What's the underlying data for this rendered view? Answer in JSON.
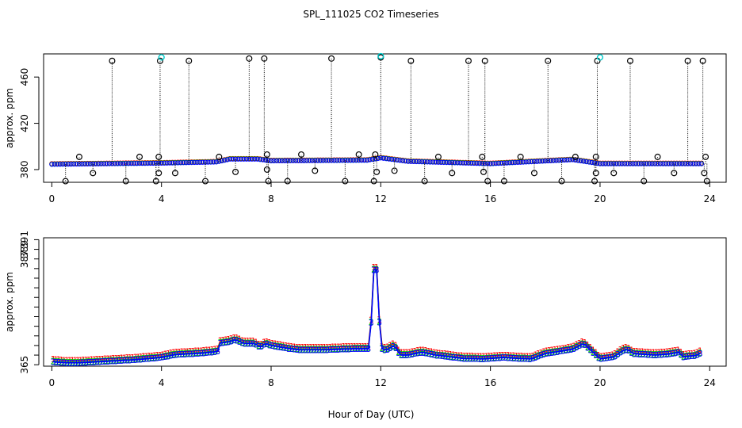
{
  "chart_data": {
    "title": "SPL_111025  CO2 Timeseries",
    "xlabel": "Hour of Day (UTC)",
    "colors": {
      "series1": "#ff0000",
      "series2": "#00cc00",
      "series3": "#0000ff",
      "outlier_low": "#000000",
      "outlier_high": "#00cccc"
    },
    "panels": [
      {
        "type": "scatter",
        "ylabel": "approx. ppm",
        "xlim": [
          -0.3,
          24.6
        ],
        "ylim": [
          369,
          480
        ],
        "xticks": [
          0,
          4,
          8,
          12,
          16,
          20,
          24
        ],
        "yticks": [
          380,
          420,
          460
        ],
        "baseline": 385,
        "baseline_points": {
          "x_start": 0.0,
          "x_end": 23.7,
          "step": 0.1,
          "y": [
            [
              0,
              384.5
            ],
            [
              4,
              385.5
            ],
            [
              6,
              386.5
            ],
            [
              6.5,
              389
            ],
            [
              7.5,
              389
            ],
            [
              8,
              387.5
            ],
            [
              11.5,
              388
            ],
            [
              12,
              390
            ],
            [
              13,
              387
            ],
            [
              16,
              385
            ],
            [
              19,
              388.5
            ],
            [
              20,
              385
            ],
            [
              24,
              385
            ]
          ]
        },
        "black_outliers": [
          [
            0.5,
            370
          ],
          [
            1,
            391
          ],
          [
            1.5,
            377
          ],
          [
            2.2,
            474
          ],
          [
            2.7,
            370
          ],
          [
            3.2,
            391
          ],
          [
            3.8,
            370
          ],
          [
            3.9,
            391
          ],
          [
            3.9,
            377
          ],
          [
            3.95,
            474
          ],
          [
            4.5,
            377
          ],
          [
            5.0,
            474
          ],
          [
            5.6,
            370
          ],
          [
            6.1,
            391
          ],
          [
            6.7,
            378
          ],
          [
            7.2,
            476
          ],
          [
            7.75,
            476
          ],
          [
            7.85,
            380
          ],
          [
            7.85,
            393
          ],
          [
            7.9,
            370
          ],
          [
            8.6,
            370
          ],
          [
            9.1,
            393
          ],
          [
            9.6,
            379
          ],
          [
            10.2,
            476
          ],
          [
            10.7,
            370
          ],
          [
            11.2,
            393
          ],
          [
            11.75,
            370
          ],
          [
            11.8,
            393
          ],
          [
            11.85,
            378
          ],
          [
            12.0,
            477
          ],
          [
            12.5,
            379
          ],
          [
            13.1,
            474
          ],
          [
            13.6,
            370
          ],
          [
            14.1,
            391
          ],
          [
            14.6,
            377
          ],
          [
            15.2,
            474
          ],
          [
            15.7,
            391
          ],
          [
            15.75,
            378
          ],
          [
            15.8,
            474
          ],
          [
            15.9,
            370
          ],
          [
            16.5,
            370
          ],
          [
            17.1,
            391
          ],
          [
            17.6,
            377
          ],
          [
            18.1,
            474
          ],
          [
            18.6,
            370
          ],
          [
            19.1,
            391
          ],
          [
            19.8,
            370
          ],
          [
            19.85,
            377
          ],
          [
            19.85,
            391
          ],
          [
            19.9,
            474
          ],
          [
            20.5,
            377
          ],
          [
            21.1,
            474
          ],
          [
            21.6,
            370
          ],
          [
            22.1,
            391
          ],
          [
            22.7,
            377
          ],
          [
            23.2,
            474
          ],
          [
            23.75,
            474
          ],
          [
            23.8,
            377
          ],
          [
            23.85,
            391
          ],
          [
            23.9,
            370
          ]
        ],
        "cyan_outliers": [
          [
            4.0,
            477
          ],
          [
            12.0,
            478
          ],
          [
            20.0,
            477
          ]
        ]
      },
      {
        "type": "line",
        "ylabel": "approx. ppm",
        "xlim": [
          -0.3,
          24.6
        ],
        "ylim": [
          364.7,
          391.4
        ],
        "xticks": [
          0,
          4,
          8,
          12,
          16,
          20,
          24
        ],
        "yticks": [
          365,
          367,
          369,
          371,
          373,
          375,
          377,
          379,
          381,
          383,
          385,
          387,
          389,
          391
        ],
        "ytick_labels": [
          "365",
          "",
          "",
          "",
          "",
          "",
          "",
          "",
          "",
          "",
          "",
          "387",
          "389",
          "391"
        ],
        "series": [
          {
            "marker": "1",
            "color": "#ff0000",
            "offset": 0.55
          },
          {
            "marker": "2",
            "color": "#00cc00",
            "offset": 0.15
          },
          {
            "marker": "3",
            "color": "#0000ff",
            "offset": 0.0
          }
        ],
        "base_series": {
          "step": 0.1,
          "knots": [
            [
              0.05,
              365.6
            ],
            [
              0.5,
              365.4
            ],
            [
              1.0,
              365.4
            ],
            [
              2.0,
              365.7
            ],
            [
              3.0,
              366.0
            ],
            [
              3.8,
              366.4
            ],
            [
              4.0,
              366.5
            ],
            [
              4.5,
              367.1
            ],
            [
              5.5,
              367.4
            ],
            [
              6.0,
              367.7
            ],
            [
              6.1,
              367.9
            ],
            [
              6.15,
              369.5
            ],
            [
              6.5,
              369.8
            ],
            [
              6.7,
              370.2
            ],
            [
              7.0,
              369.4
            ],
            [
              7.4,
              369.4
            ],
            [
              7.6,
              368.6
            ],
            [
              7.8,
              369.4
            ],
            [
              8.0,
              369.0
            ],
            [
              8.6,
              368.4
            ],
            [
              9.0,
              368.1
            ],
            [
              10.0,
              368.1
            ],
            [
              11.0,
              368.3
            ],
            [
              11.6,
              368.3
            ],
            [
              11.8,
              390.2
            ],
            [
              12.0,
              368.4
            ],
            [
              12.2,
              368.0
            ],
            [
              12.5,
              369.0
            ],
            [
              12.7,
              367.0
            ],
            [
              13.0,
              367.0
            ],
            [
              13.5,
              367.6
            ],
            [
              14.0,
              367.0
            ],
            [
              15.0,
              366.3
            ],
            [
              15.8,
              366.2
            ],
            [
              16.0,
              366.3
            ],
            [
              16.5,
              366.5
            ],
            [
              17.0,
              366.3
            ],
            [
              17.5,
              366.2
            ],
            [
              18.0,
              367.3
            ],
            [
              19.0,
              368.2
            ],
            [
              19.4,
              369.4
            ],
            [
              20.0,
              366.2
            ],
            [
              20.5,
              366.6
            ],
            [
              20.8,
              367.8
            ],
            [
              21.0,
              368.2
            ],
            [
              21.2,
              367.3
            ],
            [
              22.0,
              367.0
            ],
            [
              22.5,
              367.2
            ],
            [
              22.9,
              367.6
            ],
            [
              23.0,
              366.6
            ],
            [
              23.5,
              366.9
            ],
            [
              23.7,
              367.5
            ]
          ]
        }
      }
    ]
  }
}
